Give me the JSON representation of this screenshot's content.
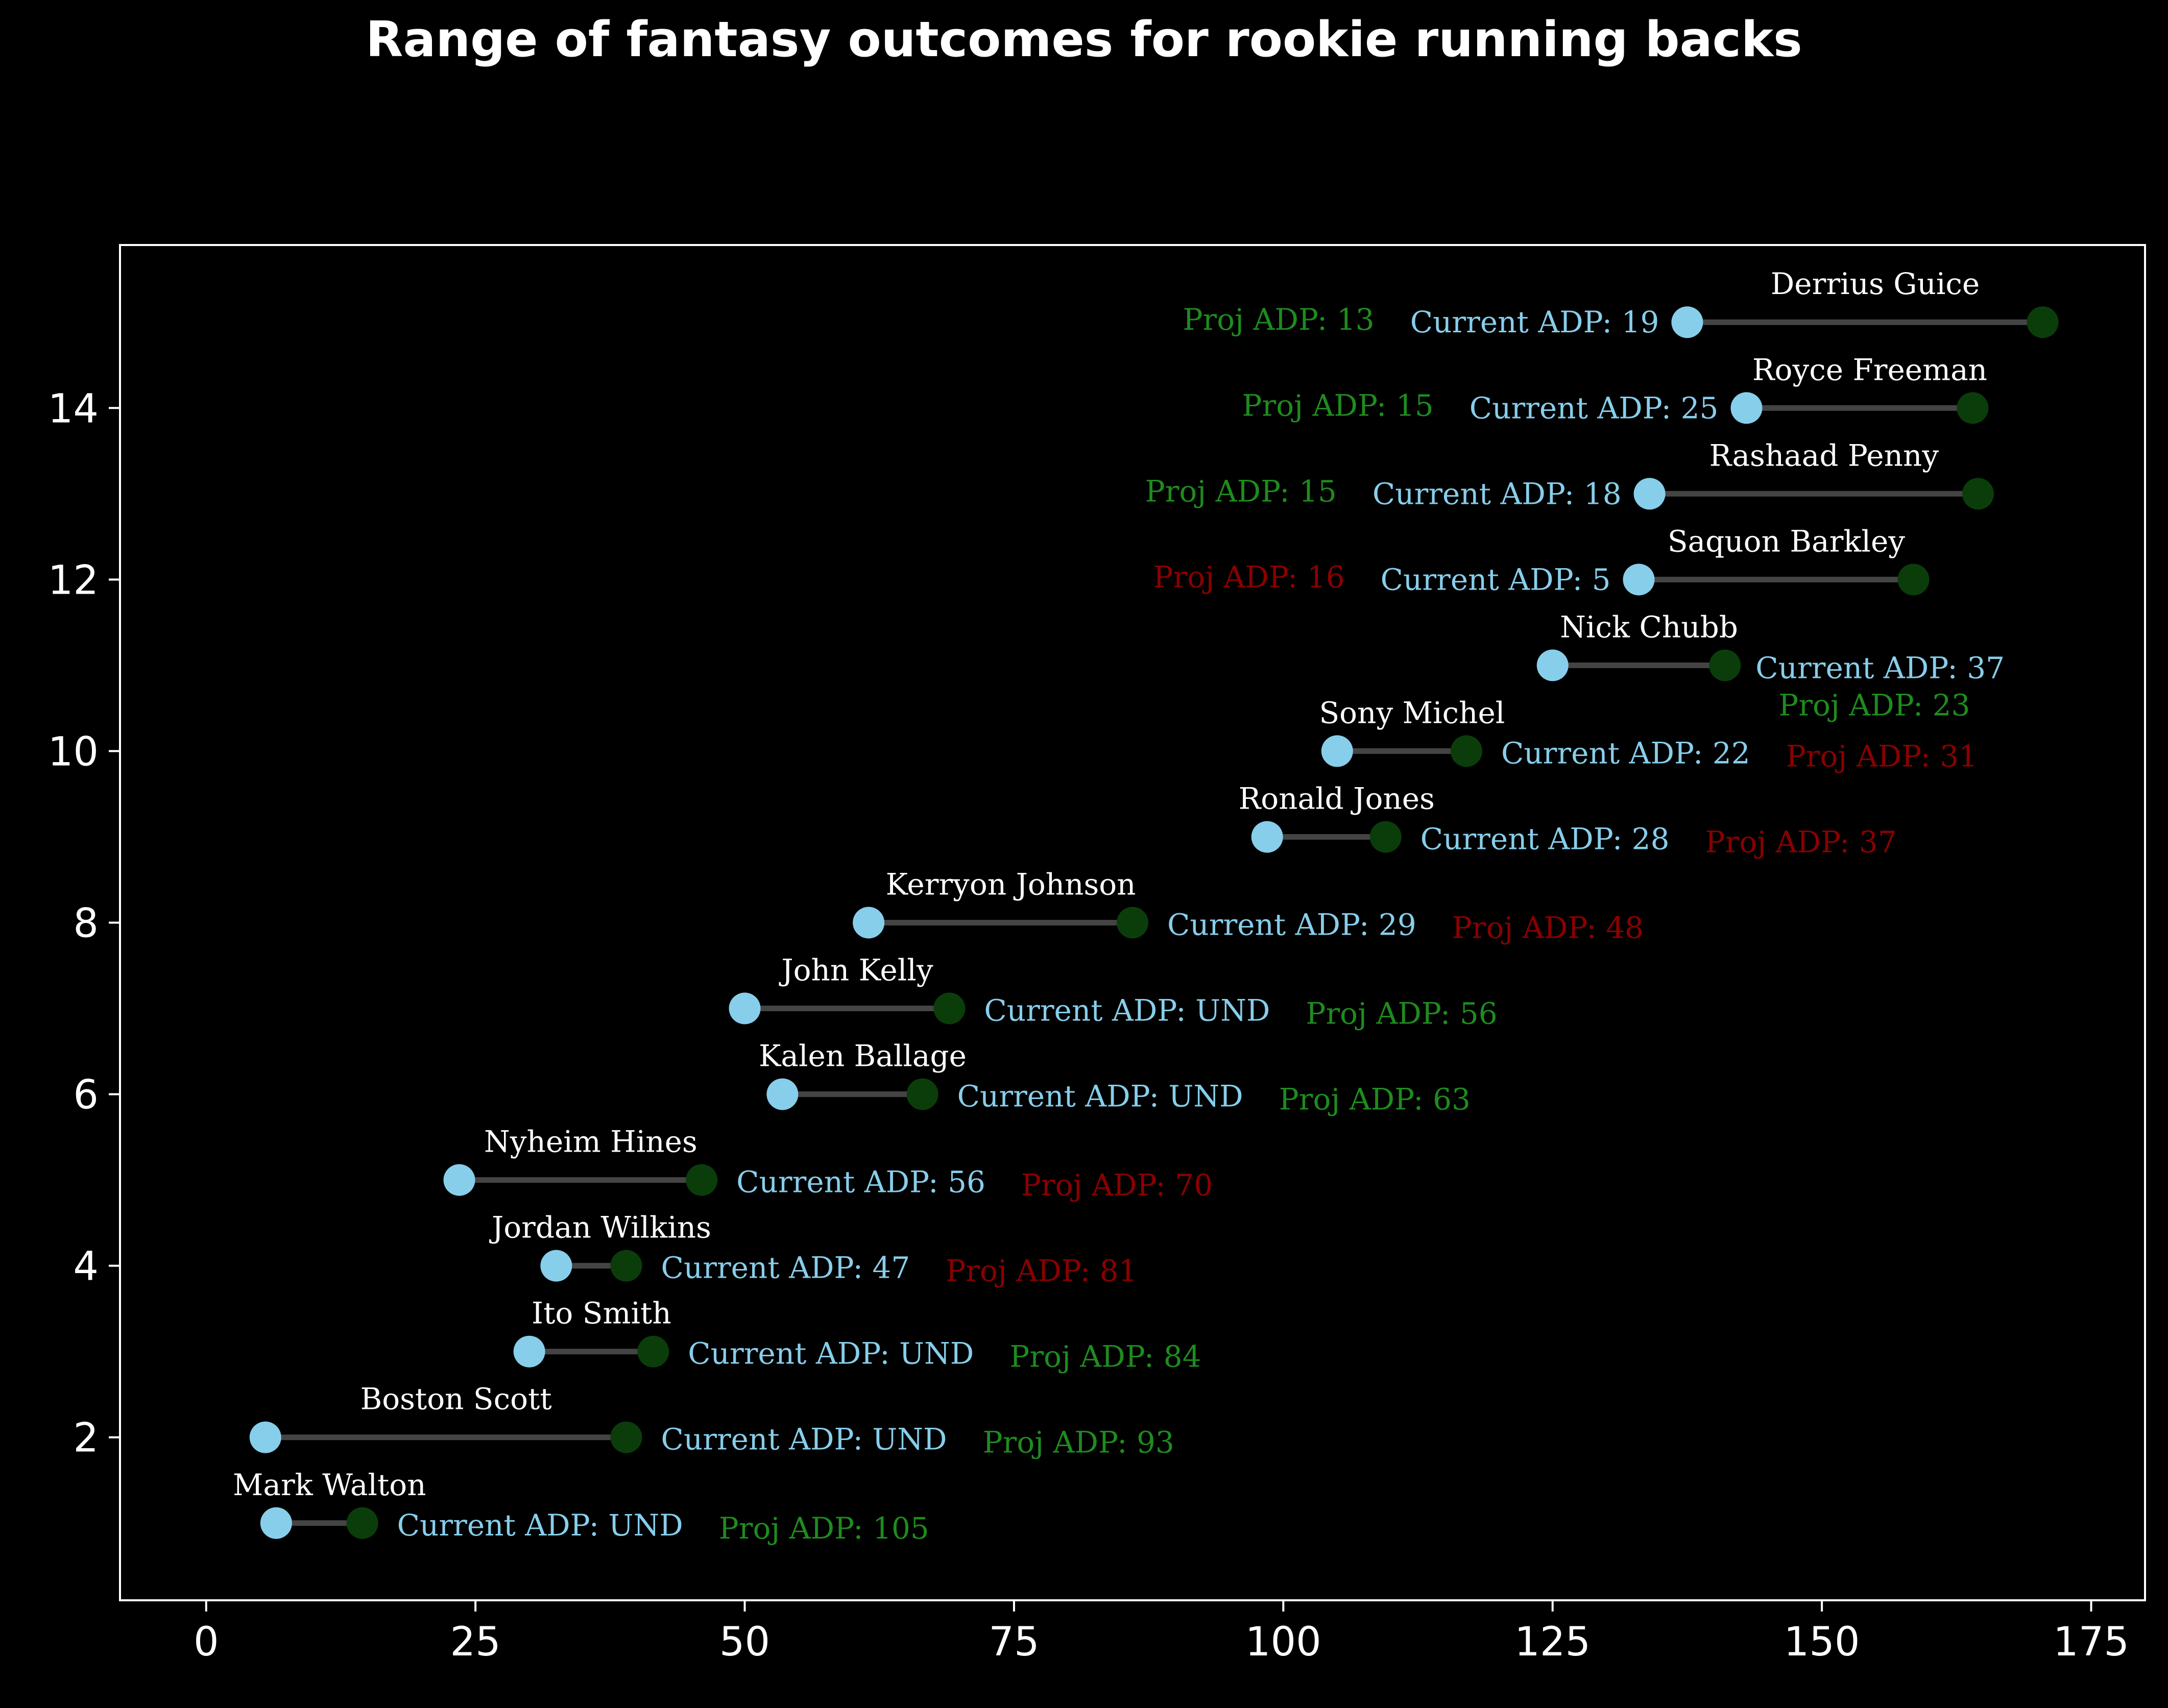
{
  "chart_data": {
    "type": "scatter",
    "title": "Range of fantasy outcomes for rookie running backs",
    "xlabel": "",
    "ylabel": "",
    "xlim": [
      -8,
      180
    ],
    "ylim": [
      0.1,
      15.9
    ],
    "xticks": [
      0,
      25,
      50,
      75,
      100,
      125,
      150,
      175
    ],
    "yticks": [
      2,
      4,
      6,
      8,
      10,
      12,
      14
    ],
    "grid": false,
    "colors": {
      "background": "#000000",
      "axes_frame": "#ffffff",
      "start_marker": "#87ceeb",
      "end_marker": "#0b3d0b",
      "range_line": "#444444",
      "name_label": "#ffffff",
      "current_adp": "#87ceeb",
      "proj_adp_up": "#1e8c1e",
      "proj_adp_down": "#8b0000"
    },
    "players": [
      {
        "name": "Mark Walton",
        "y": 1,
        "low": 6.5,
        "high": 14.5,
        "current_adp": "Current ADP: UND",
        "proj_adp": "Proj ADP: 105",
        "proj_trend": "up",
        "ann_side": "right"
      },
      {
        "name": "Boston Scott",
        "y": 2,
        "low": 5.5,
        "high": 39,
        "current_adp": "Current ADP: UND",
        "proj_adp": "Proj ADP: 93",
        "proj_trend": "up",
        "ann_side": "right"
      },
      {
        "name": "Ito Smith",
        "y": 3,
        "low": 30,
        "high": 41.5,
        "current_adp": "Current ADP: UND",
        "proj_adp": "Proj ADP: 84",
        "proj_trend": "up",
        "ann_side": "right"
      },
      {
        "name": "Jordan Wilkins",
        "y": 4,
        "low": 32.5,
        "high": 39,
        "current_adp": "Current ADP: 47",
        "proj_adp": "Proj ADP: 81",
        "proj_trend": "down",
        "ann_side": "right"
      },
      {
        "name": "Nyheim Hines",
        "y": 5,
        "low": 23.5,
        "high": 46,
        "current_adp": "Current ADP: 56",
        "proj_adp": "Proj ADP: 70",
        "proj_trend": "down",
        "ann_side": "right"
      },
      {
        "name": "Kalen Ballage",
        "y": 6,
        "low": 53.5,
        "high": 66.5,
        "current_adp": "Current ADP: UND",
        "proj_adp": "Proj ADP: 63",
        "proj_trend": "up",
        "ann_side": "right"
      },
      {
        "name": "John Kelly",
        "y": 7,
        "low": 50,
        "high": 69,
        "current_adp": "Current ADP: UND",
        "proj_adp": "Proj ADP: 56",
        "proj_trend": "up",
        "ann_side": "right"
      },
      {
        "name": "Kerryon Johnson",
        "y": 8,
        "low": 61.5,
        "high": 86,
        "current_adp": "Current ADP: 29",
        "proj_adp": "Proj ADP: 48",
        "proj_trend": "down",
        "ann_side": "right"
      },
      {
        "name": "Ronald Jones",
        "y": 9,
        "low": 98.5,
        "high": 109.5,
        "current_adp": "Current ADP: 28",
        "proj_adp": "Proj ADP: 37",
        "proj_trend": "down",
        "ann_side": "right"
      },
      {
        "name": "Sony Michel",
        "y": 10,
        "low": 105,
        "high": 117,
        "current_adp": "Current ADP: 22",
        "proj_adp": "Proj ADP: 31",
        "proj_trend": "down",
        "ann_side": "right"
      },
      {
        "name": "Nick Chubb",
        "y": 11,
        "low": 125,
        "high": 141,
        "current_adp": "Current ADP: 37",
        "proj_adp": "Proj ADP: 23",
        "proj_trend": "up",
        "ann_side": "right-stacked"
      },
      {
        "name": "Saquon Barkley",
        "y": 12,
        "low": 133,
        "high": 158.5,
        "current_adp": "Current ADP: 5",
        "proj_adp": "Proj ADP: 16",
        "proj_trend": "down",
        "ann_side": "left"
      },
      {
        "name": "Rashaad Penny",
        "y": 13,
        "low": 134,
        "high": 164.5,
        "current_adp": "Current ADP: 18",
        "proj_adp": "Proj ADP: 15",
        "proj_trend": "up",
        "ann_side": "left"
      },
      {
        "name": "Royce Freeman",
        "y": 14,
        "low": 143,
        "high": 164,
        "current_adp": "Current ADP: 25",
        "proj_adp": "Proj ADP: 15",
        "proj_trend": "up",
        "ann_side": "left"
      },
      {
        "name": "Derrius Guice",
        "y": 15,
        "low": 137.5,
        "high": 170.5,
        "current_adp": "Current ADP: 19",
        "proj_adp": "Proj ADP: 13",
        "proj_trend": "up",
        "ann_side": "left"
      }
    ]
  }
}
